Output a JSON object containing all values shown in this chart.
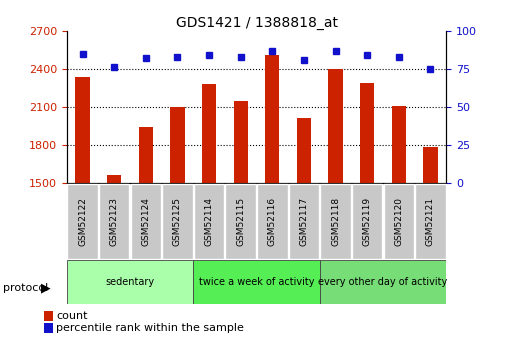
{
  "title": "GDS1421 / 1388818_at",
  "samples": [
    "GSM52122",
    "GSM52123",
    "GSM52124",
    "GSM52125",
    "GSM52114",
    "GSM52115",
    "GSM52116",
    "GSM52117",
    "GSM52118",
    "GSM52119",
    "GSM52120",
    "GSM52121"
  ],
  "counts": [
    2340,
    1560,
    1940,
    2100,
    2280,
    2150,
    2510,
    2010,
    2400,
    2290,
    2110,
    1780
  ],
  "percentiles": [
    85,
    76,
    82,
    83,
    84,
    83,
    87,
    81,
    87,
    84,
    83,
    75
  ],
  "ylim_left": [
    1500,
    2700
  ],
  "ylim_right": [
    0,
    100
  ],
  "yticks_left": [
    1500,
    1800,
    2100,
    2400,
    2700
  ],
  "yticks_right": [
    0,
    25,
    50,
    75,
    100
  ],
  "bar_color": "#cc2200",
  "dot_color": "#1111cc",
  "bar_width": 0.45,
  "groups": [
    {
      "label": "sedentary",
      "start": 0,
      "end": 4,
      "color": "#aaffaa"
    },
    {
      "label": "twice a week of activity",
      "start": 4,
      "end": 8,
      "color": "#55ee55"
    },
    {
      "label": "every other day of activity",
      "start": 8,
      "end": 12,
      "color": "#77dd77"
    }
  ],
  "protocol_label": "protocol",
  "legend_count_label": "count",
  "legend_percentile_label": "percentile rank within the sample",
  "bg_color": "#ffffff",
  "tick_bg": "#c8c8c8",
  "grid_yticks": [
    1800,
    2100,
    2400
  ]
}
